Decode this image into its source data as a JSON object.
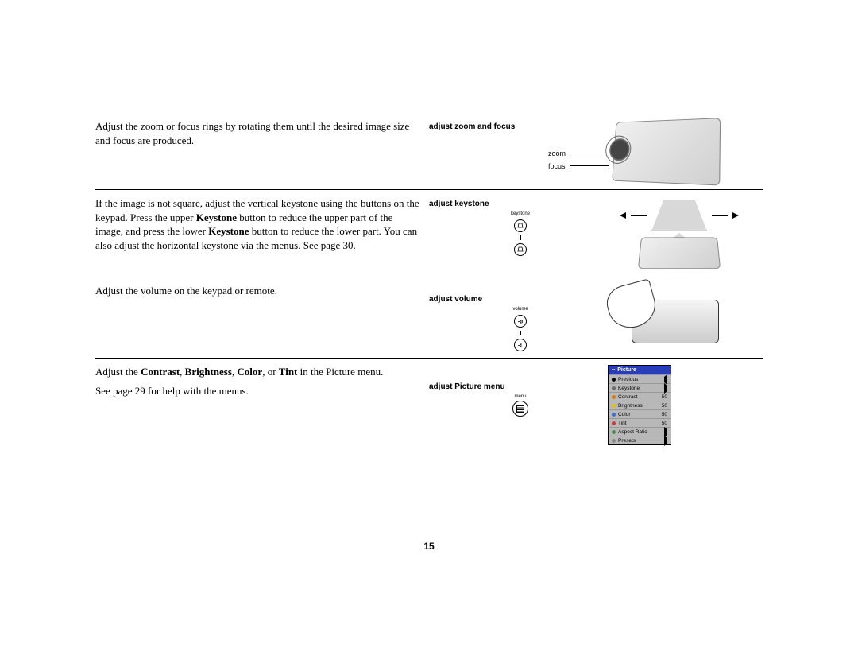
{
  "page_number": "15",
  "sections": {
    "zoom": {
      "body": "Adjust the zoom or focus rings by rotating them until the desired image size and focus are produced.",
      "caption": "adjust zoom and focus",
      "label_zoom": "zoom",
      "label_focus": "focus"
    },
    "keystone": {
      "body_pre": "If the image is not square, adjust the vertical keystone using the buttons on the keypad. Press the upper ",
      "bold1": "Keystone",
      "body_mid1": " button to reduce the upper part of the image, and press the lower ",
      "bold2": "Keystone",
      "body_mid2": " button to reduce the lower part. You can also adjust the horizontal keystone via the menus. See page 30.",
      "caption": "adjust keystone",
      "btn_label": "keystone"
    },
    "volume": {
      "body": "Adjust the volume on the keypad or remote.",
      "caption": "adjust volume",
      "btn_label": "volume"
    },
    "picture": {
      "body_pre": "Adjust the ",
      "b1": "Contrast",
      "c1": ", ",
      "b2": "Brightness",
      "c2": ", ",
      "b3": "Color",
      "c3": ", or ",
      "b4": "Tint",
      "body_post": " in the Picture menu.",
      "body_line2": "See page 29 for help with the menus.",
      "caption": "adjust Picture menu",
      "btn_label": "menu"
    }
  },
  "menu": {
    "title": "Picture",
    "items": [
      {
        "icon_color": "#000000",
        "label": "Previous",
        "value": "",
        "arrow": "left"
      },
      {
        "icon_color": "#6a6a6a",
        "label": "Keystone",
        "value": "",
        "arrow": "right"
      },
      {
        "icon_color": "#d97a00",
        "label": "Contrast",
        "value": "50",
        "arrow": ""
      },
      {
        "icon_color": "#e6c200",
        "label": "Brightness",
        "value": "50",
        "arrow": ""
      },
      {
        "icon_color": "#3a6fd8",
        "label": "Color",
        "value": "50",
        "arrow": ""
      },
      {
        "icon_color": "#d03a3a",
        "label": "Tint",
        "value": "50",
        "arrow": ""
      },
      {
        "icon_color": "#4a8a4a",
        "label": "Aspect Ratio",
        "value": "",
        "arrow": "right"
      },
      {
        "icon_color": "#888888",
        "label": "Presets",
        "value": "",
        "arrow": "right"
      }
    ],
    "colors": {
      "header_bg": "#2a3db8",
      "row_bg": "#b8b8b8",
      "frame": "#262a5e"
    }
  }
}
